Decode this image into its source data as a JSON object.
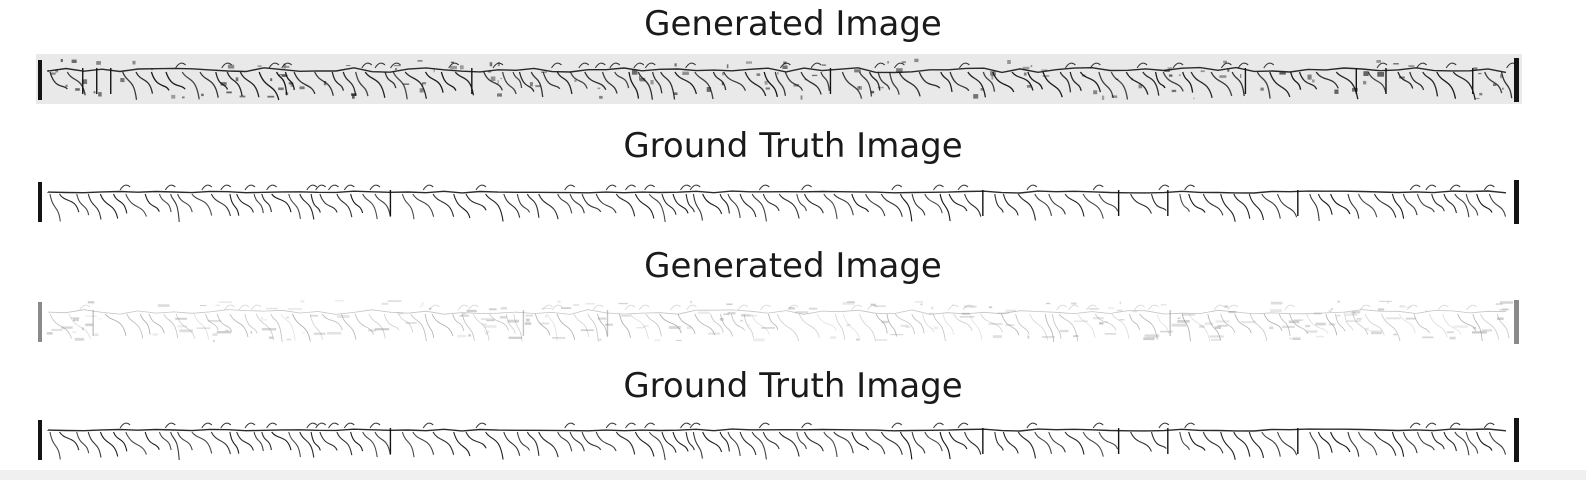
{
  "panels": [
    {
      "title": "Generated Image",
      "kind": "generated",
      "noise": 0.55
    },
    {
      "title": "Ground Truth Image",
      "kind": "truth",
      "noise": 0.0
    },
    {
      "title": "Generated Image",
      "kind": "generated-faint",
      "noise": 0.85
    },
    {
      "title": "Ground Truth Image",
      "kind": "truth",
      "noise": 0.0
    }
  ],
  "colors": {
    "ink": "#141414",
    "faint_ink": "#8a8a8a",
    "paper": "#ffffff",
    "generated_paper": "#e9e9e9"
  }
}
